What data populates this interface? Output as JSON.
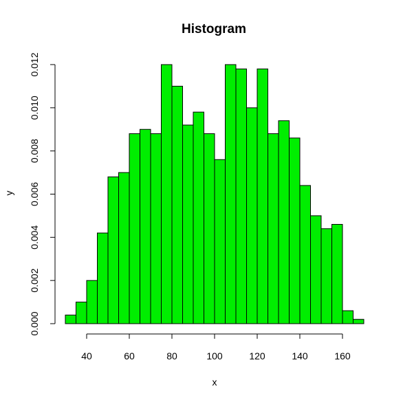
{
  "chart_data": {
    "type": "bar",
    "title": "Histogram",
    "xlabel": "x",
    "ylabel": "y",
    "bar_color": "#00ee00",
    "bin_width": 5,
    "bin_starts": [
      30,
      35,
      40,
      45,
      50,
      55,
      60,
      65,
      70,
      75,
      80,
      85,
      90,
      95,
      100,
      105,
      110,
      115,
      120,
      125,
      130,
      135,
      140,
      145,
      150,
      155,
      160,
      165
    ],
    "values": [
      0.0004,
      0.001,
      0.002,
      0.0042,
      0.0068,
      0.007,
      0.0088,
      0.009,
      0.0088,
      0.012,
      0.011,
      0.0092,
      0.0098,
      0.0088,
      0.0076,
      0.012,
      0.0118,
      0.01,
      0.0118,
      0.0088,
      0.0094,
      0.0086,
      0.0064,
      0.005,
      0.0044,
      0.0046,
      0.0006,
      0.0002
    ],
    "xlim": [
      30,
      170
    ],
    "ylim": [
      0,
      0.012
    ],
    "x_ticks": [
      "40",
      "60",
      "80",
      "100",
      "120",
      "140",
      "160"
    ],
    "y_ticks": [
      "0.000",
      "0.002",
      "0.004",
      "0.006",
      "0.008",
      "0.010",
      "0.012"
    ],
    "grid": false,
    "legend": "none"
  }
}
